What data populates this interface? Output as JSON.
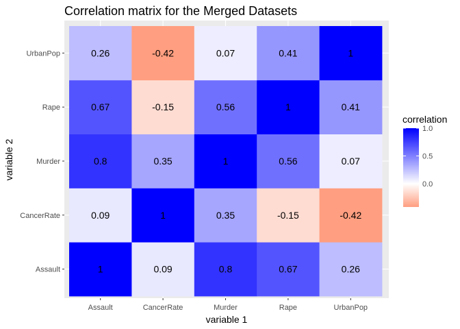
{
  "chart_data": {
    "type": "heatmap",
    "title": "Correlation matrix for the Merged Datasets",
    "xlabel": "variable 1",
    "ylabel": "variable 2",
    "x_categories": [
      "Assault",
      "CancerRate",
      "Murder",
      "Rape",
      "UrbanPop"
    ],
    "y_categories": [
      "Assault",
      "CancerRate",
      "Murder",
      "Rape",
      "UrbanPop"
    ],
    "values": [
      [
        1,
        0.09,
        0.8,
        0.67,
        0.26
      ],
      [
        0.09,
        1,
        0.35,
        -0.15,
        -0.42
      ],
      [
        0.8,
        0.35,
        1,
        0.56,
        0.07
      ],
      [
        0.67,
        -0.15,
        0.56,
        1,
        0.41
      ],
      [
        0.26,
        -0.42,
        0.07,
        0.41,
        1
      ]
    ],
    "labels": [
      [
        "1",
        "0.09",
        "0.8",
        "0.67",
        "0.26"
      ],
      [
        "0.09",
        "1",
        "0.35",
        "-0.15",
        "-0.42"
      ],
      [
        "0.8",
        "0.35",
        "1",
        "0.56",
        "0.07"
      ],
      [
        "0.67",
        "-0.15",
        "0.56",
        "1",
        "0.41"
      ],
      [
        "0.26",
        "-0.42",
        "0.07",
        "0.41",
        "1"
      ]
    ],
    "legend": {
      "title": "correlation",
      "ticks": [
        "1.0",
        "0.5",
        "0.0"
      ],
      "tick_values": [
        1.0,
        0.5,
        0.0
      ],
      "range": [
        -0.42,
        1.0
      ],
      "placement": "right"
    },
    "colors": {
      "low": "#FF9E80",
      "mid": "#FFFFFF",
      "high": "#0000FF",
      "panel_background": "#EBEBEB",
      "grid": "#FFFFFF"
    },
    "grid": true
  }
}
